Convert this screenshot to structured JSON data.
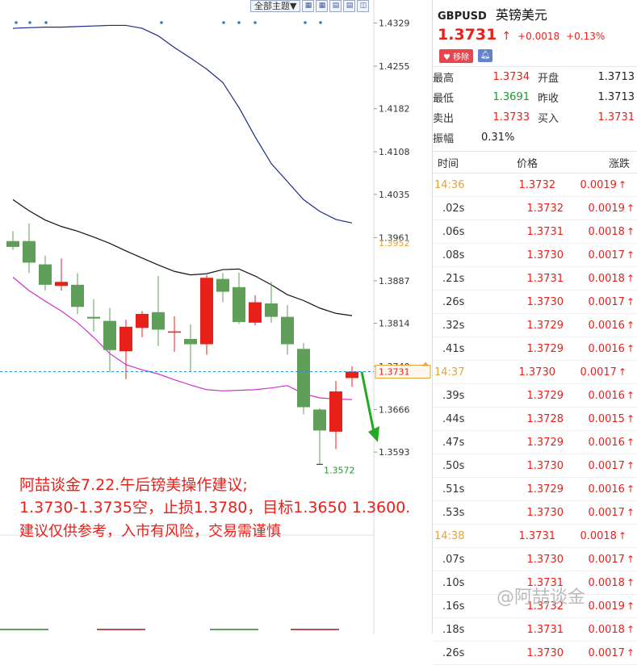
{
  "toolbar": {
    "theme_label": "全部主题▼",
    "icons": [
      "grid-icon",
      "grid-icon",
      "page-icon",
      "page-icon",
      "panel-icon"
    ]
  },
  "chart_data": {
    "type": "candlestick",
    "price_axis": [
      "1.4329",
      "1.4255",
      "1.4182",
      "1.4108",
      "1.4035",
      "1.3961",
      "1.3887",
      "1.3814",
      "1.3740",
      "1.3666",
      "1.3593"
    ],
    "ylim": [
      1.356,
      1.4345
    ],
    "highlight_label": "1.3952",
    "current_price_label": "1.3731",
    "current_price": 1.3731,
    "low_marker": "1.3572",
    "candles": [
      {
        "o": 1.3955,
        "h": 1.3972,
        "l": 1.394,
        "c": 1.3945
      },
      {
        "o": 1.3955,
        "h": 1.3985,
        "l": 1.39,
        "c": 1.3918
      },
      {
        "o": 1.3915,
        "h": 1.393,
        "l": 1.387,
        "c": 1.388
      },
      {
        "o": 1.3878,
        "h": 1.3925,
        "l": 1.387,
        "c": 1.3885
      },
      {
        "o": 1.388,
        "h": 1.39,
        "l": 1.383,
        "c": 1.3842
      },
      {
        "o": 1.3825,
        "h": 1.3855,
        "l": 1.38,
        "c": 1.3822
      },
      {
        "o": 1.3818,
        "h": 1.384,
        "l": 1.373,
        "c": 1.3768
      },
      {
        "o": 1.3766,
        "h": 1.382,
        "l": 1.3718,
        "c": 1.3808
      },
      {
        "o": 1.3806,
        "h": 1.3835,
        "l": 1.379,
        "c": 1.383
      },
      {
        "o": 1.3833,
        "h": 1.3895,
        "l": 1.3775,
        "c": 1.3803
      },
      {
        "o": 1.3798,
        "h": 1.3826,
        "l": 1.3765,
        "c": 1.38
      },
      {
        "o": 1.3787,
        "h": 1.3812,
        "l": 1.373,
        "c": 1.3778
      },
      {
        "o": 1.3778,
        "h": 1.3897,
        "l": 1.376,
        "c": 1.3892
      },
      {
        "o": 1.389,
        "h": 1.39,
        "l": 1.385,
        "c": 1.3868
      },
      {
        "o": 1.3876,
        "h": 1.3901,
        "l": 1.3813,
        "c": 1.3816
      },
      {
        "o": 1.3815,
        "h": 1.3862,
        "l": 1.381,
        "c": 1.385
      },
      {
        "o": 1.3848,
        "h": 1.3885,
        "l": 1.3815,
        "c": 1.3825
      },
      {
        "o": 1.3825,
        "h": 1.3845,
        "l": 1.376,
        "c": 1.3778
      },
      {
        "o": 1.377,
        "h": 1.378,
        "l": 1.3658,
        "c": 1.367
      },
      {
        "o": 1.3666,
        "h": 1.3668,
        "l": 1.3572,
        "c": 1.363
      },
      {
        "o": 1.3628,
        "h": 1.3715,
        "l": 1.3598,
        "c": 1.3697
      },
      {
        "o": 1.372,
        "h": 1.374,
        "l": 1.3705,
        "c": 1.3731
      }
    ],
    "ma_fast": [
      1.3893,
      1.387,
      1.3852,
      1.3835,
      1.3815,
      1.379,
      1.3762,
      1.3743,
      1.3734,
      1.3727,
      1.3717,
      1.3708,
      1.37,
      1.3698,
      1.3699,
      1.37,
      1.3703,
      1.3707,
      1.3693,
      1.3686,
      1.3684,
      1.3683
    ],
    "ma_mid": [
      1.4026,
      1.4007,
      1.3991,
      1.398,
      1.3972,
      1.3962,
      1.3951,
      1.3938,
      1.3926,
      1.3914,
      1.3903,
      1.3897,
      1.3899,
      1.3906,
      1.3907,
      1.3895,
      1.388,
      1.3863,
      1.3853,
      1.384,
      1.3831,
      1.3827
    ],
    "ma_slow": [
      1.432,
      1.4321,
      1.4322,
      1.4322,
      1.4323,
      1.4324,
      1.4325,
      1.4325,
      1.432,
      1.4307,
      1.4287,
      1.4269,
      1.425,
      1.4227,
      1.4184,
      1.4134,
      1.4088,
      1.4057,
      1.4026,
      1.4006,
      1.3992,
      1.3986
    ],
    "colors": {
      "up": "#e8201a",
      "down": "#5f9f5a",
      "ma_fast": "#cc33cc",
      "ma_mid": "#111111",
      "ma_slow": "#1b2b8a",
      "arrow": "#22aa22",
      "dash": "#2f8bcc"
    }
  },
  "annotation": {
    "line1": "阿喆谈金7.22.午后镑美操作建议;",
    "line2": "1.3730-1.3735空，止损1.3780，目标1.3650  1.3600.",
    "line3": "建议仅供参考，入市有风险，交易需谨慎"
  },
  "quote": {
    "code": "GBPUSD",
    "name": "英镑美元",
    "price": "1.3731",
    "change": "+0.0018",
    "change_pct": "+0.13%",
    "remove_label": "移除",
    "stats": [
      {
        "label": "最高",
        "value": "1.3734",
        "color": "red",
        "label2": "开盘",
        "value2": "1.3713",
        "color2": "dark"
      },
      {
        "label": "最低",
        "value": "1.3691",
        "color": "green",
        "label2": "昨收",
        "value2": "1.3713",
        "color2": "dark"
      },
      {
        "label": "卖出",
        "value": "1.3733",
        "color": "red",
        "label2": "买入",
        "value2": "1.3731",
        "color2": "red"
      }
    ],
    "amplitude_label": "振幅",
    "amplitude": "0.31%",
    "ticks_head": {
      "time": "时间",
      "price": "价格",
      "change": "涨跌"
    },
    "ticks": [
      {
        "time": "14:36",
        "major": true,
        "price": "1.3732",
        "chg": "0.0019"
      },
      {
        "time": ".02s",
        "major": false,
        "price": "1.3732",
        "chg": "0.0019"
      },
      {
        "time": ".06s",
        "major": false,
        "price": "1.3731",
        "chg": "0.0018"
      },
      {
        "time": ".08s",
        "major": false,
        "price": "1.3730",
        "chg": "0.0017"
      },
      {
        "time": ".21s",
        "major": false,
        "price": "1.3731",
        "chg": "0.0018"
      },
      {
        "time": ".26s",
        "major": false,
        "price": "1.3730",
        "chg": "0.0017"
      },
      {
        "time": ".32s",
        "major": false,
        "price": "1.3729",
        "chg": "0.0016"
      },
      {
        "time": ".41s",
        "major": false,
        "price": "1.3729",
        "chg": "0.0016"
      },
      {
        "time": "14:37",
        "major": true,
        "price": "1.3730",
        "chg": "0.0017"
      },
      {
        "time": ".39s",
        "major": false,
        "price": "1.3729",
        "chg": "0.0016"
      },
      {
        "time": ".44s",
        "major": false,
        "price": "1.3728",
        "chg": "0.0015"
      },
      {
        "time": ".47s",
        "major": false,
        "price": "1.3729",
        "chg": "0.0016"
      },
      {
        "time": ".50s",
        "major": false,
        "price": "1.3730",
        "chg": "0.0017"
      },
      {
        "time": ".51s",
        "major": false,
        "price": "1.3729",
        "chg": "0.0016"
      },
      {
        "time": ".53s",
        "major": false,
        "price": "1.3730",
        "chg": "0.0017"
      },
      {
        "time": "14:38",
        "major": true,
        "price": "1.3731",
        "chg": "0.0018"
      },
      {
        "time": ".07s",
        "major": false,
        "price": "1.3730",
        "chg": "0.0017"
      },
      {
        "time": ".10s",
        "major": false,
        "price": "1.3731",
        "chg": "0.0018"
      },
      {
        "time": ".16s",
        "major": false,
        "price": "1.3732",
        "chg": "0.0019"
      },
      {
        "time": ".18s",
        "major": false,
        "price": "1.3731",
        "chg": "0.0018"
      },
      {
        "time": ".26s",
        "major": false,
        "price": "1.3730",
        "chg": "0.0017"
      }
    ]
  },
  "watermark": "@阿喆谈金"
}
